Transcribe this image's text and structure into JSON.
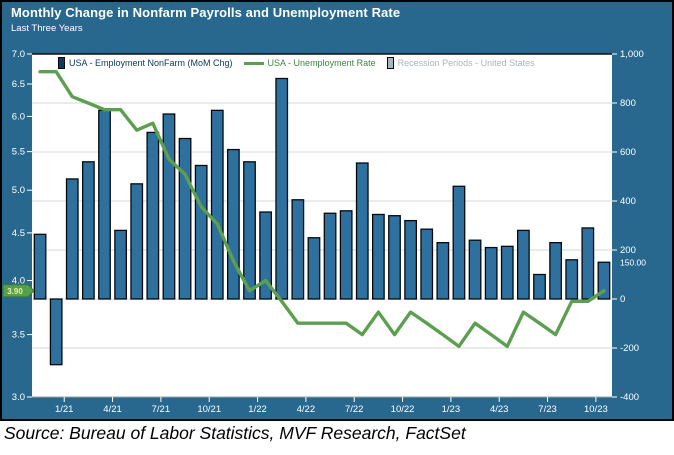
{
  "header": {
    "title": "Monthly Change in Nonfarm Payrolls and Unemployment Rate",
    "subtitle": "Last Three Years"
  },
  "legend": [
    {
      "label": "USA - Employment NonFarm (MoM Chg)",
      "type": "bar",
      "color": "#0f3a60",
      "swatch": "#2e719f"
    },
    {
      "label": "USA - Unemployment Rate",
      "type": "line",
      "color": "#3f8440",
      "swatch": "#5c9f50"
    },
    {
      "label": "Recession Periods - United States",
      "type": "bar",
      "color": "#aab4bb",
      "swatch": "#aab4bb"
    }
  ],
  "source": "Source: Bureau of Labor Statistics, MVF Research, FactSet",
  "chart_data": {
    "type": "bar",
    "title": "Monthly Change in Nonfarm Payrolls and Unemployment Rate",
    "subtitle": "Last Three Years",
    "months": [
      "11/20",
      "12/20",
      "1/21",
      "2/21",
      "3/21",
      "4/21",
      "5/21",
      "6/21",
      "7/21",
      "8/21",
      "9/21",
      "10/21",
      "11/21",
      "12/21",
      "1/22",
      "2/22",
      "3/22",
      "4/22",
      "5/22",
      "6/22",
      "7/22",
      "8/22",
      "9/22",
      "10/22",
      "11/22",
      "12/22",
      "1/23",
      "2/23",
      "3/23",
      "4/23",
      "5/23",
      "6/23",
      "7/23",
      "8/23",
      "9/23",
      "10/23"
    ],
    "series": [
      {
        "name": "USA - Employment NonFarm (MoM Chg)",
        "type": "bar",
        "axis": "right",
        "unit": "thousands",
        "values": [
          264,
          -268,
          490,
          560,
          770,
          280,
          470,
          680,
          755,
          655,
          545,
          770,
          610,
          560,
          355,
          900,
          405,
          250,
          350,
          360,
          555,
          345,
          340,
          320,
          285,
          230,
          460,
          240,
          210,
          215,
          280,
          100,
          230,
          160,
          290,
          150
        ]
      },
      {
        "name": "USA - Unemployment Rate",
        "type": "line",
        "axis": "left",
        "unit": "percent",
        "values": [
          6.7,
          6.7,
          6.3,
          6.2,
          6.1,
          6.1,
          5.8,
          5.9,
          5.4,
          5.2,
          4.8,
          4.6,
          4.2,
          3.9,
          4.0,
          3.8,
          3.6,
          3.6,
          3.6,
          3.6,
          3.5,
          3.7,
          3.5,
          3.7,
          3.6,
          3.5,
          3.4,
          3.6,
          3.5,
          3.4,
          3.7,
          3.6,
          3.5,
          3.8,
          3.8,
          3.9
        ]
      }
    ],
    "x_tick_labels": [
      "1/21",
      "4/21",
      "7/21",
      "10/21",
      "1/22",
      "4/22",
      "7/22",
      "10/22",
      "1/23",
      "4/23",
      "7/23",
      "10/23"
    ],
    "x_tick_month_indices": [
      2,
      5,
      8,
      11,
      14,
      17,
      20,
      23,
      26,
      29,
      32,
      35
    ],
    "left_axis": {
      "scale": "log",
      "min": 3.0,
      "max": 7.0,
      "ticks": [
        "7.0",
        "6.5",
        "6.0",
        "5.5",
        "5.0",
        "4.5",
        "4.0",
        "3.5",
        "3.0"
      ],
      "tick_values": [
        7.0,
        6.5,
        6.0,
        5.5,
        5.0,
        4.5,
        4.0,
        3.5,
        3.0
      ],
      "callout": {
        "text": "3.90",
        "value": 3.9
      }
    },
    "right_axis": {
      "scale": "linear",
      "min": -400,
      "max": 1000,
      "ticks": [
        "1,000",
        "800",
        "600",
        "400",
        "200",
        "0",
        "-200",
        "-400"
      ],
      "tick_values": [
        1000,
        800,
        600,
        400,
        200,
        0,
        -200,
        -400
      ],
      "gridline_values": [
        800,
        600,
        400,
        200,
        0,
        -200
      ],
      "callout": {
        "text": "150.00",
        "value": 150
      }
    },
    "legend_position": "top",
    "grid": true,
    "colors": {
      "card_background": "#28688f",
      "plot_background": "#ffffff",
      "bar_fill": "#2e719f",
      "bar_border": "#05090e",
      "line": "#5c9f50",
      "gridline": "#d7d7d7",
      "axis_text": "#ffffff",
      "badge_fill": "#55a149",
      "badge_border": "#3c7a33",
      "badge_text": "#efe9ae",
      "plot_top_border": "#111111",
      "plot_bottom_border": "#9aa4aa"
    }
  }
}
